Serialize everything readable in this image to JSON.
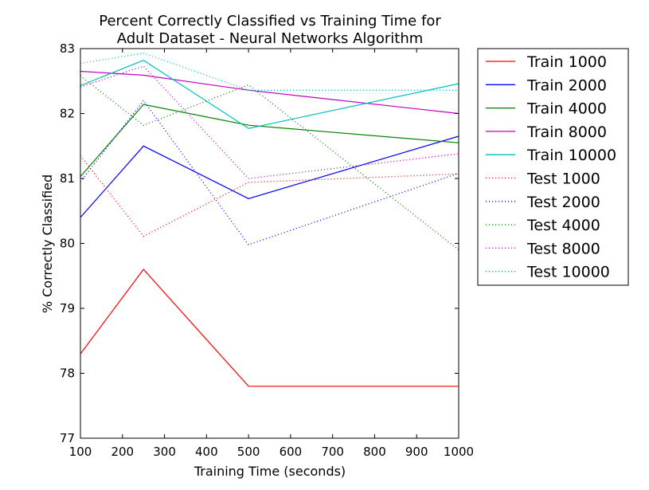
{
  "chart_data": {
    "type": "line",
    "title_lines": [
      "Percent Correctly Classified vs Training Time for",
      "Adult Dataset - Neural Networks Algorithm"
    ],
    "xlabel": "Training Time (seconds)",
    "ylabel": "% Correctly Classified",
    "xlim": [
      100,
      1000
    ],
    "ylim": [
      77,
      83
    ],
    "xticks": [
      100,
      200,
      300,
      400,
      500,
      600,
      700,
      800,
      900,
      1000
    ],
    "yticks": [
      77,
      78,
      79,
      80,
      81,
      82,
      83
    ],
    "x": [
      100,
      250,
      500,
      1000
    ],
    "legend_position": "outside-right-top",
    "grid": false,
    "series": [
      {
        "name": "Train 1000",
        "style": "solid",
        "color": "#ff0000",
        "values": [
          78.3,
          79.6,
          77.8,
          77.8
        ]
      },
      {
        "name": "Train 2000",
        "style": "solid",
        "color": "#0000ff",
        "values": [
          80.4,
          81.5,
          80.69,
          81.65
        ]
      },
      {
        "name": "Train 4000",
        "style": "solid",
        "color": "#008000",
        "values": [
          81.03,
          82.14,
          81.82,
          81.55
        ]
      },
      {
        "name": "Train 8000",
        "style": "solid",
        "color": "#bf00bf",
        "values": [
          82.65,
          82.59,
          82.36,
          82.0
        ]
      },
      {
        "name": "Train 10000",
        "style": "solid",
        "color": "#00bfbf",
        "values": [
          82.43,
          82.82,
          81.77,
          82.46
        ]
      },
      {
        "name": "Test 1000",
        "style": "dotted",
        "color": "#ff0000",
        "values": [
          81.35,
          80.11,
          80.94,
          81.07
        ]
      },
      {
        "name": "Test 2000",
        "style": "dotted",
        "color": "#0000ff",
        "values": [
          80.95,
          82.2,
          79.98,
          81.08
        ]
      },
      {
        "name": "Test 4000",
        "style": "dotted",
        "color": "#008000",
        "values": [
          82.58,
          81.82,
          82.44,
          79.9
        ]
      },
      {
        "name": "Test 8000",
        "style": "dotted",
        "color": "#bf00bf",
        "values": [
          82.41,
          82.73,
          81.0,
          81.38
        ]
      },
      {
        "name": "Test 10000",
        "style": "dotted",
        "color": "#00bfbf",
        "values": [
          82.77,
          82.93,
          82.36,
          82.36
        ]
      }
    ]
  }
}
